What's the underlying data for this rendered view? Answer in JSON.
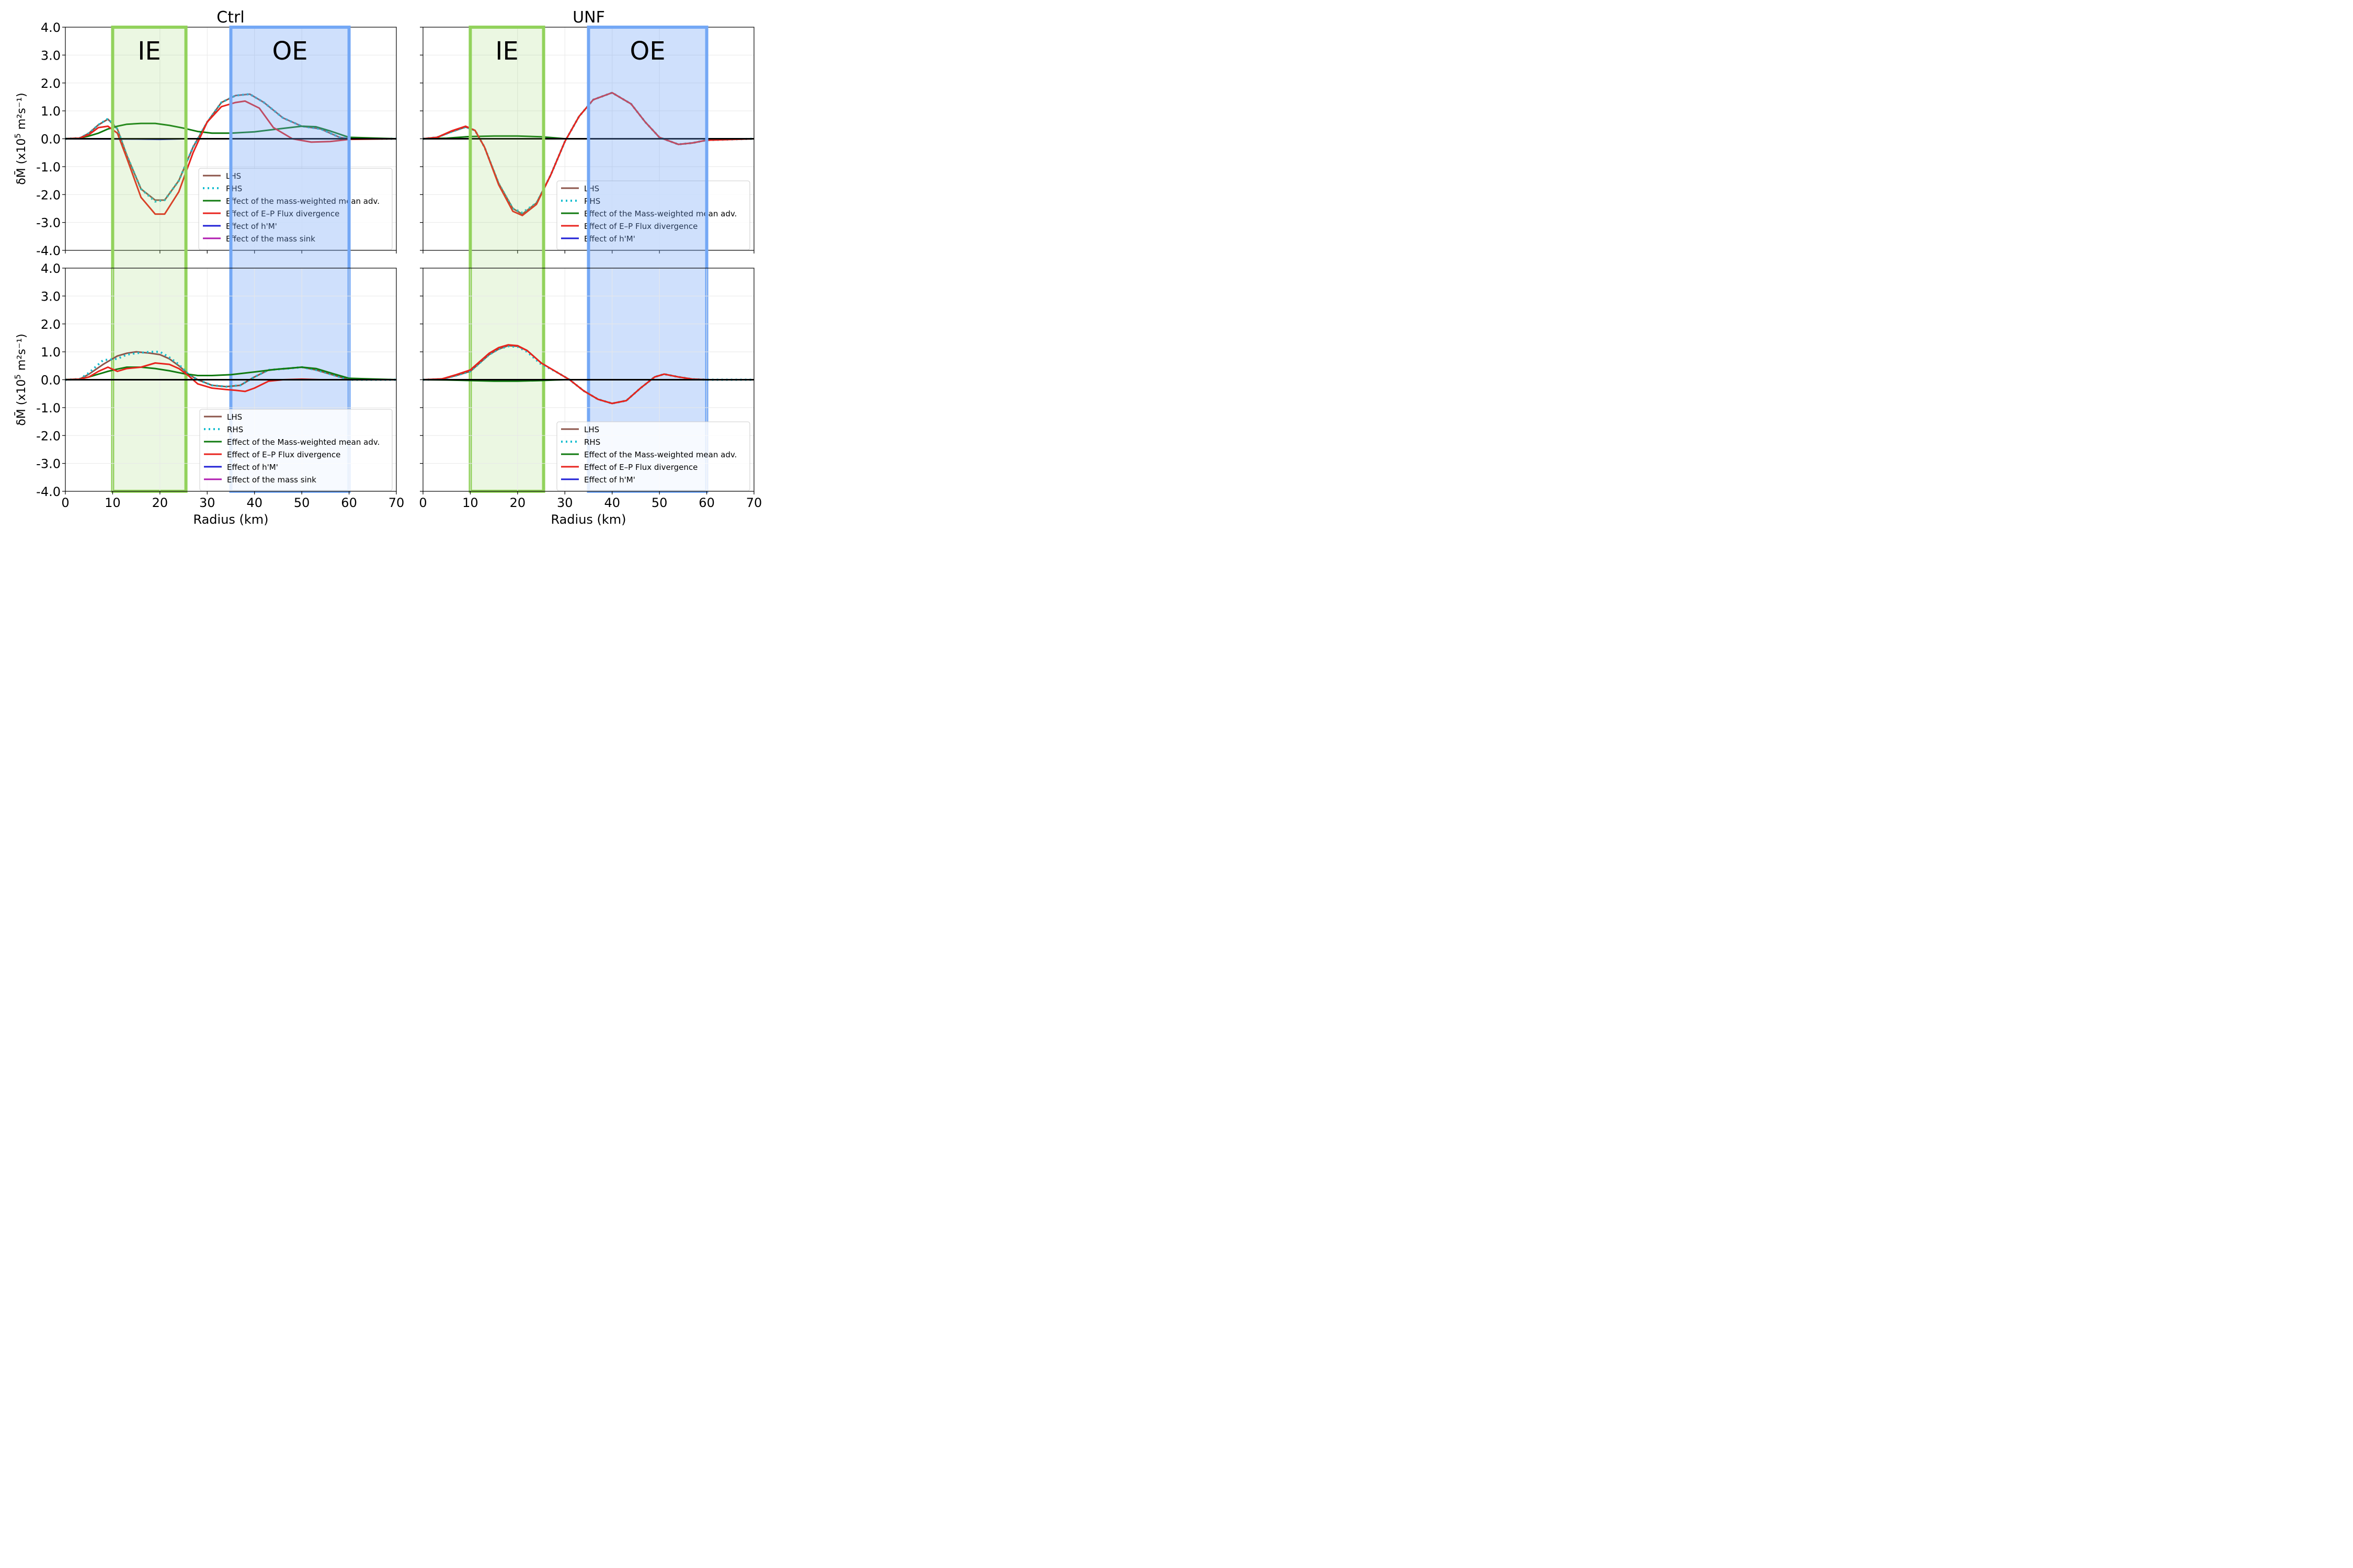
{
  "figure": {
    "col_titles": [
      "Ctrl",
      "UNF"
    ],
    "xlabel": "Radius (km)",
    "ylabel_main": "δM̄ (x10",
    "ylabel_exp": "5",
    "ylabel_units": " m²s⁻¹)",
    "region_labels": {
      "ie": "IE",
      "oe": "OE"
    }
  },
  "chart_data": [
    {
      "type": "line",
      "panel": "Ctrl (top)",
      "xlim": [
        0,
        70
      ],
      "ylim": [
        -4.0,
        4.0
      ],
      "xticks": [
        0,
        10,
        20,
        30,
        40,
        50,
        60,
        70
      ],
      "yticks": [
        "4.0",
        "3.0",
        "2.0",
        "1.0",
        "0.0",
        "-1.0",
        "-2.0",
        "-3.0",
        "-4.0"
      ],
      "regions": [
        {
          "label": "IE",
          "x": [
            10,
            25.5
          ]
        },
        {
          "label": "OE",
          "x": [
            35,
            60
          ]
        }
      ],
      "legend": [
        "LHS",
        "RHS",
        "Effect of the mass-weighted mean adv.",
        "Effect of E–P Flux divergence",
        "Effect of h'M'",
        "Effect of the mass sink"
      ],
      "legend_loc": "lower-right",
      "series": [
        {
          "name": "LHS",
          "color": "#8c564b",
          "style": "solid",
          "x": [
            0,
            3,
            5,
            7,
            9,
            11,
            13,
            16,
            19,
            21,
            24,
            27,
            30,
            33,
            36,
            39,
            42,
            46,
            50,
            54,
            58,
            60,
            70
          ],
          "y": [
            0,
            0.02,
            0.2,
            0.5,
            0.7,
            0.35,
            -0.6,
            -1.8,
            -2.2,
            -2.2,
            -1.5,
            -0.3,
            0.6,
            1.3,
            1.55,
            1.6,
            1.3,
            0.75,
            0.45,
            0.35,
            0.05,
            0,
            0
          ]
        },
        {
          "name": "RHS",
          "color": "#17becf",
          "style": "dotted",
          "x": [
            0,
            3,
            5,
            7,
            9,
            11,
            13,
            16,
            19,
            21,
            24,
            27,
            30,
            33,
            36,
            39,
            42,
            46,
            50,
            54,
            58,
            60,
            70
          ],
          "y": [
            0,
            0.02,
            0.2,
            0.5,
            0.72,
            0.35,
            -0.6,
            -1.8,
            -2.25,
            -2.2,
            -1.5,
            -0.3,
            0.6,
            1.3,
            1.55,
            1.6,
            1.3,
            0.75,
            0.45,
            0.35,
            0.05,
            0,
            0
          ]
        },
        {
          "name": "Effect of the mass-weighted mean adv.",
          "color": "#107a10",
          "style": "solid",
          "x": [
            0,
            3,
            5,
            7,
            9,
            11,
            13,
            16,
            19,
            22,
            25,
            28,
            31,
            35,
            40,
            45,
            50,
            53,
            56,
            60,
            70
          ],
          "y": [
            0,
            0.02,
            0.1,
            0.2,
            0.35,
            0.45,
            0.52,
            0.55,
            0.55,
            0.48,
            0.38,
            0.26,
            0.2,
            0.2,
            0.25,
            0.35,
            0.45,
            0.43,
            0.28,
            0.05,
            0
          ]
        },
        {
          "name": "Effect of E–P Flux divergence",
          "color": "#e8231d",
          "style": "solid",
          "x": [
            0,
            3,
            5,
            7,
            9,
            11,
            13,
            16,
            19,
            21,
            24,
            27,
            30,
            33,
            36,
            38,
            41,
            44,
            48,
            52,
            56,
            60,
            70
          ],
          "y": [
            0,
            0.02,
            0.15,
            0.4,
            0.45,
            0.2,
            -0.7,
            -2.1,
            -2.7,
            -2.7,
            -1.9,
            -0.5,
            0.6,
            1.15,
            1.3,
            1.35,
            1.1,
            0.4,
            0.0,
            -0.12,
            -0.1,
            -0.02,
            0
          ]
        },
        {
          "name": "Effect of h'M'",
          "color": "#1f1fd6",
          "style": "solid",
          "x": [
            0,
            15,
            20,
            25,
            70
          ],
          "y": [
            0,
            -0.01,
            -0.02,
            0,
            0
          ]
        },
        {
          "name": "Effect of the mass sink",
          "color": "#b01bb0",
          "style": "solid",
          "x": [
            0,
            70
          ],
          "y": [
            0,
            0
          ]
        }
      ]
    },
    {
      "type": "line",
      "panel": "UNF (top)",
      "xlim": [
        0,
        70
      ],
      "ylim": [
        -4.0,
        4.0
      ],
      "xticks": [
        0,
        10,
        20,
        30,
        40,
        50,
        60,
        70
      ],
      "regions": [
        {
          "label": "IE",
          "x": [
            10,
            25.5
          ]
        },
        {
          "label": "OE",
          "x": [
            35,
            60
          ]
        }
      ],
      "legend": [
        "LHS",
        "RHS",
        "Effect of the Mass-weighted mean adv.",
        "Effect of E–P Flux divergence",
        "Effect of h'M'"
      ],
      "legend_loc": "lower-right",
      "series": [
        {
          "name": "LHS",
          "color": "#8c564b",
          "style": "solid",
          "x": [
            0,
            3,
            6,
            9,
            11,
            13,
            16,
            19,
            21,
            24,
            27,
            30,
            33,
            36,
            40,
            44,
            47,
            50,
            54,
            57,
            60,
            70
          ],
          "y": [
            0,
            0.05,
            0.25,
            0.42,
            0.3,
            -0.3,
            -1.6,
            -2.5,
            -2.7,
            -2.3,
            -1.3,
            -0.1,
            0.8,
            1.4,
            1.65,
            1.25,
            0.6,
            0.05,
            -0.2,
            -0.15,
            -0.05,
            0
          ]
        },
        {
          "name": "RHS",
          "color": "#17becf",
          "style": "dotted",
          "x": [
            0,
            3,
            6,
            9,
            11,
            13,
            16,
            19,
            21,
            24,
            27,
            30,
            33,
            36,
            40,
            44,
            47,
            50,
            54,
            57,
            60,
            70
          ],
          "y": [
            0,
            0.05,
            0.25,
            0.42,
            0.3,
            -0.3,
            -1.6,
            -2.5,
            -2.65,
            -2.3,
            -1.3,
            -0.1,
            0.8,
            1.4,
            1.65,
            1.25,
            0.6,
            0.05,
            -0.2,
            -0.15,
            -0.05,
            0
          ]
        },
        {
          "name": "Effect of the Mass-weighted mean adv.",
          "color": "#107a10",
          "style": "solid",
          "x": [
            0,
            5,
            10,
            15,
            20,
            25,
            28,
            30,
            70
          ],
          "y": [
            0,
            0.02,
            0.08,
            0.1,
            0.1,
            0.07,
            0.03,
            0,
            0
          ]
        },
        {
          "name": "Effect of E–P Flux divergence",
          "color": "#e8231d",
          "style": "solid",
          "x": [
            0,
            3,
            6,
            9,
            11,
            13,
            16,
            19,
            21,
            24,
            27,
            30,
            33,
            36,
            40,
            44,
            47,
            50,
            54,
            57,
            60,
            70
          ],
          "y": [
            0,
            0.05,
            0.28,
            0.45,
            0.3,
            -0.3,
            -1.65,
            -2.6,
            -2.75,
            -2.35,
            -1.3,
            -0.1,
            0.8,
            1.4,
            1.65,
            1.25,
            0.6,
            0.05,
            -0.2,
            -0.15,
            -0.05,
            0
          ]
        },
        {
          "name": "Effect of h'M'",
          "color": "#1f1fd6",
          "style": "solid",
          "x": [
            0,
            70
          ],
          "y": [
            0,
            0
          ]
        }
      ]
    },
    {
      "type": "line",
      "panel": "Ctrl (bottom)",
      "xlim": [
        0,
        70
      ],
      "ylim": [
        -4.0,
        4.0
      ],
      "xticks": [
        0,
        10,
        20,
        30,
        40,
        50,
        60,
        70
      ],
      "yticks": [
        "4.0",
        "3.0",
        "2.0",
        "1.0",
        "0.0",
        "-1.0",
        "-2.0",
        "-3.0",
        "-4.0"
      ],
      "regions": [
        {
          "label": "IE",
          "x": [
            10,
            25.5
          ]
        },
        {
          "label": "OE",
          "x": [
            35,
            60
          ]
        }
      ],
      "legend": [
        "LHS",
        "RHS",
        "Effect of the Mass-weighted mean adv.",
        "Effect of E–P Flux divergence",
        "Effect of h'M'",
        "Effect of the mass sink"
      ],
      "legend_loc": "lower-right",
      "series": [
        {
          "name": "LHS",
          "color": "#8c564b",
          "style": "solid",
          "x": [
            0,
            3,
            5,
            8,
            11,
            13,
            15,
            18,
            20,
            22,
            24,
            26,
            28,
            31,
            34,
            37,
            40,
            43,
            47,
            50,
            53,
            56,
            60,
            70
          ],
          "y": [
            0,
            0.02,
            0.2,
            0.55,
            0.85,
            0.95,
            1.0,
            0.95,
            0.9,
            0.75,
            0.5,
            0.2,
            0.0,
            -0.2,
            -0.25,
            -0.2,
            0.1,
            0.35,
            0.4,
            0.45,
            0.35,
            0.2,
            0,
            0
          ]
        },
        {
          "name": "RHS",
          "color": "#17becf",
          "style": "dotted",
          "x": [
            0,
            3,
            5,
            8,
            11,
            13,
            15,
            18,
            20,
            22,
            24,
            26,
            28,
            31,
            34,
            37,
            40,
            43,
            47,
            50,
            53,
            56,
            60,
            70
          ],
          "y": [
            0,
            0.02,
            0.25,
            0.7,
            0.75,
            0.9,
            0.95,
            1.0,
            1.0,
            0.8,
            0.55,
            0.2,
            0.0,
            -0.2,
            -0.25,
            -0.2,
            0.1,
            0.35,
            0.4,
            0.45,
            0.35,
            0.2,
            0,
            0
          ]
        },
        {
          "name": "Effect of the Mass-weighted mean adv.",
          "color": "#107a10",
          "style": "solid",
          "x": [
            0,
            3,
            5,
            7,
            9,
            11,
            13,
            16,
            19,
            22,
            25,
            28,
            31,
            35,
            40,
            45,
            50,
            53,
            56,
            60,
            70
          ],
          "y": [
            0,
            0.02,
            0.1,
            0.2,
            0.3,
            0.38,
            0.45,
            0.45,
            0.4,
            0.32,
            0.22,
            0.15,
            0.15,
            0.18,
            0.28,
            0.38,
            0.45,
            0.4,
            0.25,
            0.05,
            0
          ]
        },
        {
          "name": "Effect of E–P Flux divergence",
          "color": "#e8231d",
          "style": "solid",
          "x": [
            0,
            3,
            5,
            7,
            9,
            11,
            13,
            16,
            19,
            22,
            24,
            26,
            28,
            31,
            34,
            36,
            38,
            40,
            43,
            46,
            50,
            54,
            60,
            70
          ],
          "y": [
            0,
            0.02,
            0.1,
            0.3,
            0.45,
            0.3,
            0.4,
            0.45,
            0.6,
            0.55,
            0.4,
            0.15,
            -0.15,
            -0.3,
            -0.35,
            -0.38,
            -0.42,
            -0.3,
            -0.05,
            0.0,
            0.02,
            0.0,
            0,
            0
          ]
        },
        {
          "name": "Effect of h'M'",
          "color": "#1f1fd6",
          "style": "solid",
          "x": [
            0,
            70
          ],
          "y": [
            0,
            0
          ]
        },
        {
          "name": "Effect of the mass sink",
          "color": "#b01bb0",
          "style": "solid",
          "x": [
            0,
            70
          ],
          "y": [
            0,
            0
          ]
        }
      ]
    },
    {
      "type": "line",
      "panel": "UNF (bottom)",
      "xlim": [
        0,
        70
      ],
      "ylim": [
        -4.0,
        4.0
      ],
      "xticks": [
        0,
        10,
        20,
        30,
        40,
        50,
        60,
        70
      ],
      "regions": [
        {
          "label": "IE",
          "x": [
            10,
            25.5
          ]
        },
        {
          "label": "OE",
          "x": [
            35,
            60
          ]
        }
      ],
      "legend": [
        "LHS",
        "RHS",
        "Effect of the Mass-weighted mean adv.",
        "Effect of E–P Flux divergence",
        "Effect of h'M'"
      ],
      "legend_loc": "lower-right",
      "series": [
        {
          "name": "LHS",
          "color": "#8c564b",
          "style": "solid",
          "x": [
            0,
            4,
            7,
            10,
            12,
            14,
            16,
            18,
            20,
            22,
            25,
            28,
            31,
            34,
            37,
            40,
            43,
            46,
            49,
            51,
            54,
            57,
            60,
            70
          ],
          "y": [
            0,
            0.02,
            0.15,
            0.3,
            0.6,
            0.9,
            1.1,
            1.22,
            1.2,
            1.05,
            0.6,
            0.3,
            0.0,
            -0.4,
            -0.7,
            -0.85,
            -0.75,
            -0.3,
            0.1,
            0.2,
            0.1,
            0.02,
            0,
            0
          ]
        },
        {
          "name": "RHS",
          "color": "#17becf",
          "style": "dotted",
          "x": [
            0,
            4,
            7,
            10,
            12,
            14,
            16,
            18,
            20,
            22,
            25,
            28,
            31,
            34,
            37,
            40,
            43,
            46,
            49,
            51,
            54,
            57,
            60,
            70
          ],
          "y": [
            0,
            0.02,
            0.15,
            0.3,
            0.6,
            0.9,
            1.1,
            1.2,
            1.18,
            1.0,
            0.55,
            0.3,
            0.0,
            -0.4,
            -0.7,
            -0.85,
            -0.75,
            -0.3,
            0.1,
            0.2,
            0.1,
            0.02,
            0,
            0
          ]
        },
        {
          "name": "Effect of the Mass-weighted mean adv.",
          "color": "#107a10",
          "style": "solid",
          "x": [
            0,
            5,
            10,
            15,
            20,
            25,
            28,
            30,
            70
          ],
          "y": [
            0,
            -0.01,
            -0.03,
            -0.05,
            -0.05,
            -0.03,
            -0.01,
            0,
            0
          ]
        },
        {
          "name": "Effect of E–P Flux divergence",
          "color": "#e8231d",
          "style": "solid",
          "x": [
            0,
            4,
            7,
            10,
            12,
            14,
            16,
            18,
            20,
            22,
            25,
            28,
            31,
            34,
            37,
            40,
            43,
            46,
            49,
            51,
            54,
            57,
            60,
            70
          ],
          "y": [
            0,
            0.03,
            0.18,
            0.35,
            0.65,
            0.95,
            1.15,
            1.25,
            1.22,
            1.05,
            0.6,
            0.3,
            0.0,
            -0.4,
            -0.7,
            -0.85,
            -0.75,
            -0.3,
            0.1,
            0.2,
            0.1,
            0.02,
            0,
            0
          ]
        },
        {
          "name": "Effect of h'M'",
          "color": "#1f1fd6",
          "style": "solid",
          "x": [
            0,
            70
          ],
          "y": [
            0,
            0
          ]
        }
      ]
    }
  ]
}
